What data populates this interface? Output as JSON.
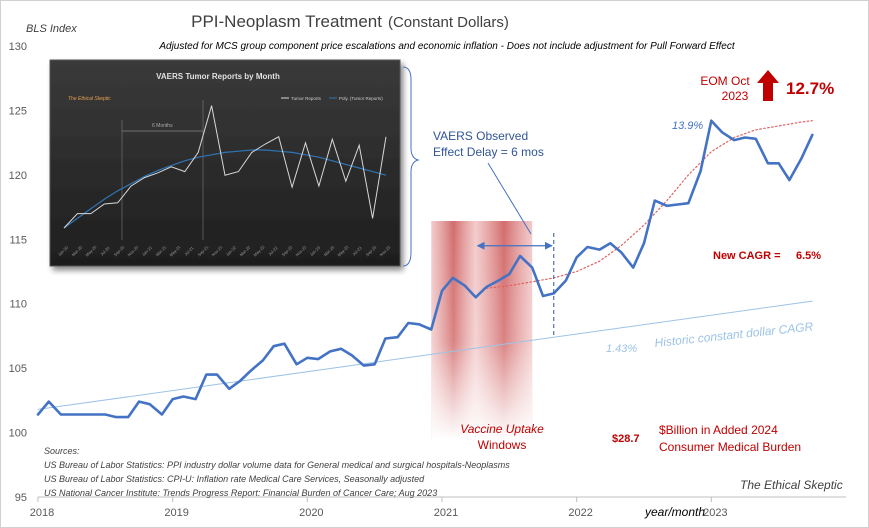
{
  "chart_data": {
    "type": "line",
    "title": "PPI-Neoplasm Treatment",
    "title_suffix": "(Constant Dollars)",
    "subtitle": "Adjusted for MCS group component price escalations and economic inflation - Does not include adjustment for Pull Forward Effect",
    "ylabel": "BLS Index",
    "xlabel": "year/month",
    "ylim": [
      95,
      130
    ],
    "yticks": [
      95,
      100,
      105,
      110,
      115,
      120,
      125,
      130
    ],
    "xticks": [
      {
        "t": 2018.0,
        "label": "2018"
      },
      {
        "t": 2019.0,
        "label": "2019"
      },
      {
        "t": 2020.0,
        "label": "2020"
      },
      {
        "t": 2021.0,
        "label": "2021"
      },
      {
        "t": 2022.0,
        "label": "2022"
      },
      {
        "t": 2023.0,
        "label": "2023"
      }
    ],
    "series": [
      {
        "name": "PPI-Neoplasm Treatment (Constant Dollars)",
        "color": "#4472c4",
        "points": [
          [
            2018.0,
            101.4
          ],
          [
            2018.08,
            102.4
          ],
          [
            2018.17,
            101.4
          ],
          [
            2018.25,
            101.4
          ],
          [
            2018.33,
            101.4
          ],
          [
            2018.42,
            101.4
          ],
          [
            2018.5,
            101.4
          ],
          [
            2018.58,
            101.2
          ],
          [
            2018.67,
            101.2
          ],
          [
            2018.75,
            102.4
          ],
          [
            2018.83,
            102.2
          ],
          [
            2018.92,
            101.4
          ],
          [
            2019.0,
            102.6
          ],
          [
            2019.08,
            102.8
          ],
          [
            2019.17,
            102.6
          ],
          [
            2019.25,
            104.5
          ],
          [
            2019.33,
            104.5
          ],
          [
            2019.42,
            103.4
          ],
          [
            2019.5,
            104.0
          ],
          [
            2019.58,
            104.8
          ],
          [
            2019.67,
            105.6
          ],
          [
            2019.75,
            106.7
          ],
          [
            2019.83,
            106.9
          ],
          [
            2019.92,
            105.3
          ],
          [
            2020.0,
            105.8
          ],
          [
            2020.08,
            105.7
          ],
          [
            2020.17,
            106.3
          ],
          [
            2020.25,
            106.5
          ],
          [
            2020.33,
            106.0
          ],
          [
            2020.42,
            105.2
          ],
          [
            2020.5,
            105.3
          ],
          [
            2020.58,
            107.3
          ],
          [
            2020.67,
            107.4
          ],
          [
            2020.75,
            108.5
          ],
          [
            2020.83,
            108.4
          ],
          [
            2020.92,
            108.0
          ],
          [
            2021.0,
            111.0
          ],
          [
            2021.08,
            112.0
          ],
          [
            2021.17,
            111.4
          ],
          [
            2021.25,
            110.5
          ],
          [
            2021.33,
            111.3
          ],
          [
            2021.42,
            111.8
          ],
          [
            2021.5,
            112.3
          ],
          [
            2021.58,
            113.7
          ],
          [
            2021.67,
            112.8
          ],
          [
            2021.75,
            110.6
          ],
          [
            2021.83,
            110.8
          ],
          [
            2021.92,
            111.8
          ],
          [
            2022.0,
            113.6
          ],
          [
            2022.08,
            114.4
          ],
          [
            2022.17,
            114.2
          ],
          [
            2022.25,
            114.7
          ],
          [
            2022.33,
            114.0
          ],
          [
            2022.42,
            112.8
          ],
          [
            2022.5,
            114.7
          ],
          [
            2022.58,
            118.0
          ],
          [
            2022.67,
            117.6
          ],
          [
            2022.75,
            117.7
          ],
          [
            2022.83,
            117.8
          ],
          [
            2022.92,
            120.3
          ],
          [
            2023.0,
            124.2
          ],
          [
            2023.08,
            123.3
          ],
          [
            2023.17,
            122.7
          ],
          [
            2023.25,
            122.9
          ],
          [
            2023.33,
            122.8
          ],
          [
            2023.42,
            120.9
          ],
          [
            2023.5,
            120.9
          ],
          [
            2023.58,
            119.6
          ],
          [
            2023.67,
            121.3
          ],
          [
            2023.75,
            123.1
          ]
        ]
      },
      {
        "name": "Historic constant dollar CAGR",
        "color": "#9dc3e6",
        "points": [
          [
            2018.0,
            101.8
          ],
          [
            2023.75,
            110.2
          ]
        ]
      },
      {
        "name": "New CAGR trend",
        "color": "#e06060",
        "style": "dotted",
        "points": [
          [
            2021.33,
            111.2
          ],
          [
            2021.5,
            111.4
          ],
          [
            2021.67,
            111.7
          ],
          [
            2021.83,
            112.0
          ],
          [
            2022.0,
            112.5
          ],
          [
            2022.17,
            113.3
          ],
          [
            2022.33,
            114.5
          ],
          [
            2022.5,
            116.1
          ],
          [
            2022.67,
            118.0
          ],
          [
            2022.83,
            120.0
          ],
          [
            2023.0,
            121.8
          ],
          [
            2023.17,
            122.9
          ],
          [
            2023.33,
            123.5
          ],
          [
            2023.5,
            123.8
          ],
          [
            2023.67,
            124.1
          ],
          [
            2023.75,
            124.2
          ]
        ]
      }
    ],
    "bands": [
      [
        2020.92,
        2021.25
      ],
      [
        2021.25,
        2021.67
      ]
    ],
    "marker_line_t": 2021.83,
    "arrow_span": [
      2021.25,
      2021.83
    ],
    "arrow_y": 114.5,
    "annotations": {
      "peak_pct": "13.9%",
      "eom_label_1": "EOM Oct",
      "eom_label_2": "2023",
      "eom_pct": "12.7%",
      "new_cagr_label": "New CAGR =",
      "new_cagr_value": "6.5%",
      "historic_pct": "1.43%",
      "historic_label": "Historic constant dollar CAGR",
      "vaers_delay_1": "VAERS Observed",
      "vaers_delay_2": "Effect Delay = 6 mos",
      "vaccine_1": "Vaccine Uptake",
      "vaccine_2": "Windows",
      "burden_value": "$28.7",
      "burden_1": "$Billion in Added 2024",
      "burden_2": "Consumer Medical Burden",
      "brand": "The Ethical Skeptic"
    },
    "sources": [
      "Sources:",
      "US Bureau of Labor Statistics: PPI industry dollar volume data for General medical and surgical hospitals-Neoplasms",
      "US Bureau of Labor Statistics: CPI-U: Inflation rate Medical Care Services, Seasonally adjusted",
      "US National Cancer Institute: Trends Progress Report: Financial Burden of Cancer Care; Aug 2023"
    ]
  },
  "inset": {
    "title": "VAERS Tumor Reports by Month",
    "brand": "The Ethical Skeptic",
    "legend_a": "Tumor Reports",
    "legend_b": "Poly. (Tumor Reports)",
    "months_label": "6 Months",
    "x_labels": [
      "Jan-20",
      "Mar-20",
      "May-20",
      "Jul-20",
      "Sep-20",
      "Nov-20",
      "Jan-21",
      "Mar-21",
      "May-21",
      "Jul-21",
      "Sep-21",
      "Nov-21",
      "Jan-22",
      "Mar-22",
      "May-22",
      "Jul-22",
      "Sep-22",
      "Nov-22",
      "Jan-23",
      "Mar-23",
      "May-23",
      "Jul-23",
      "Sep-23",
      "Nov-23"
    ],
    "values": [
      10,
      22,
      22,
      30,
      31,
      45,
      52,
      56,
      61,
      57,
      73,
      112,
      54,
      57,
      73,
      80,
      86,
      44,
      81,
      45,
      84,
      49,
      79,
      18,
      86
    ],
    "trend": [
      10,
      18,
      26,
      34,
      41,
      47,
      53,
      58,
      62,
      66,
      69,
      71,
      73,
      74,
      75,
      75,
      74,
      73,
      71,
      69,
      66,
      63,
      60,
      57,
      54
    ]
  }
}
